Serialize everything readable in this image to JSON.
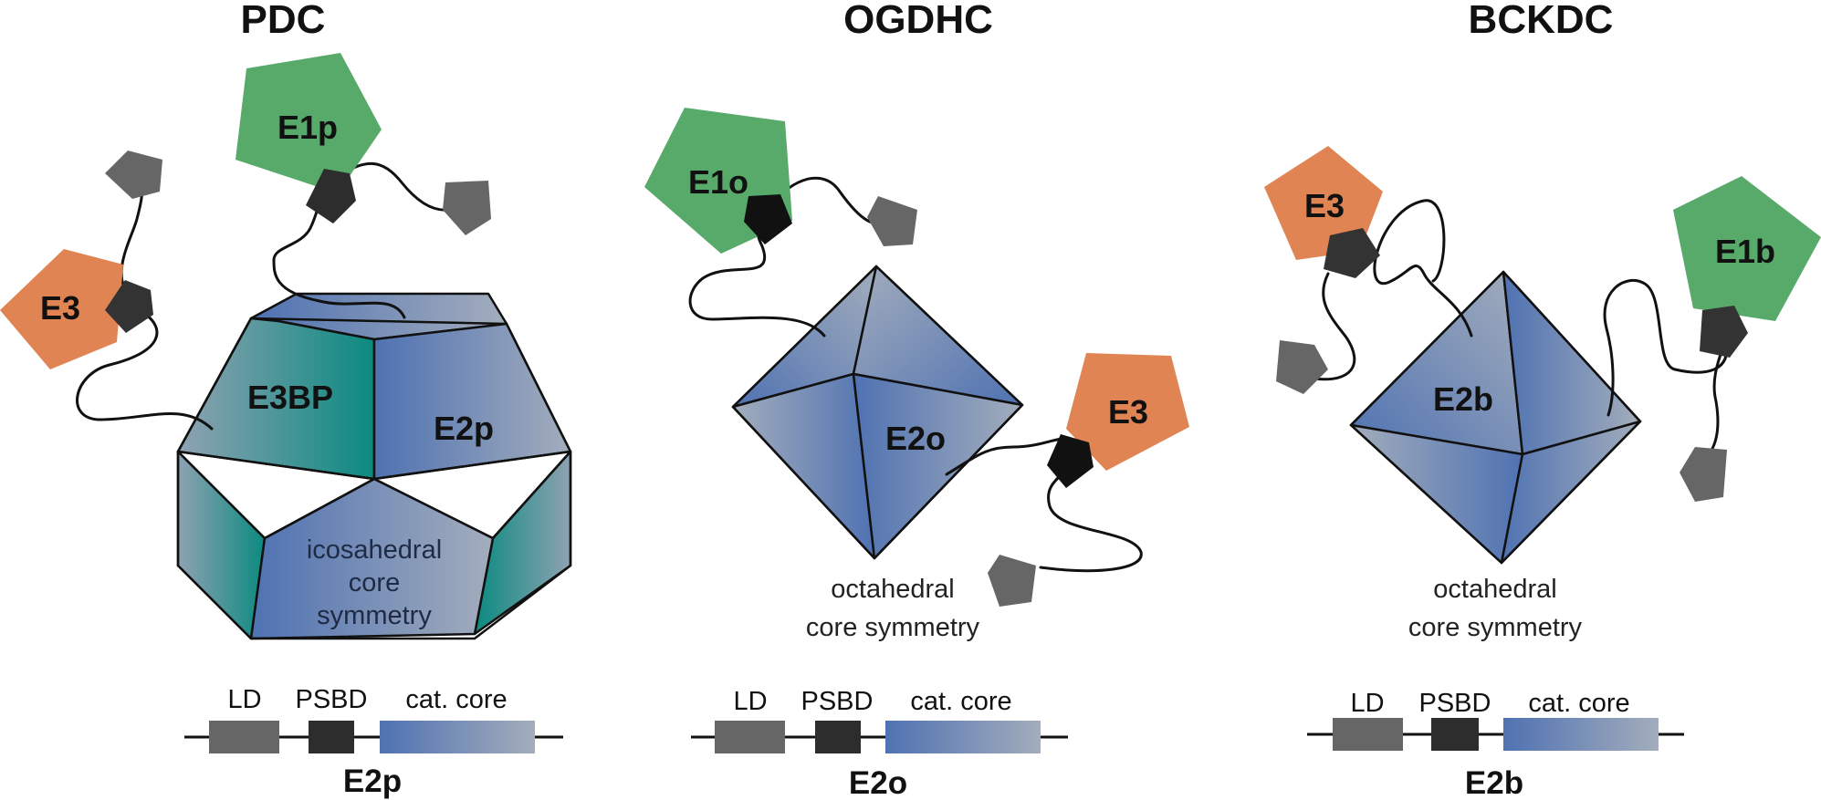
{
  "panels": [
    {
      "title": "PDC",
      "enzymes": {
        "e1": "E1p",
        "e3": "E3",
        "e3bp": "E3BP",
        "core": "E2p"
      },
      "symmetry_lines": [
        "icosahedral",
        "core",
        "symmetry"
      ],
      "domains": {
        "ld": "LD",
        "psbd": "PSBD",
        "core": "cat. core",
        "name": "E2p"
      }
    },
    {
      "title": "OGDHC",
      "enzymes": {
        "e1": "E1o",
        "e3": "E3",
        "core": "E2o"
      },
      "symmetry_lines": [
        "octahedral",
        "core symmetry"
      ],
      "domains": {
        "ld": "LD",
        "psbd": "PSBD",
        "core": "cat. core",
        "name": "E2o"
      }
    },
    {
      "title": "BCKDC",
      "enzymes": {
        "e1": "E1b",
        "e3": "E3",
        "core": "E2b"
      },
      "symmetry_lines": [
        "octahedral",
        "core symmetry"
      ],
      "domains": {
        "ld": "LD",
        "psbd": "PSBD",
        "core": "cat. core",
        "name": "E2b"
      }
    }
  ],
  "colors": {
    "e1_green": "#58aa6a",
    "e3_orange": "#e08454",
    "psbd_black": "#2d2d2d",
    "ld_grey": "#666666",
    "core_blue": "#4f72b2",
    "core_grey": "#98a6bb",
    "e3bp_teal": "#0b8a80"
  }
}
